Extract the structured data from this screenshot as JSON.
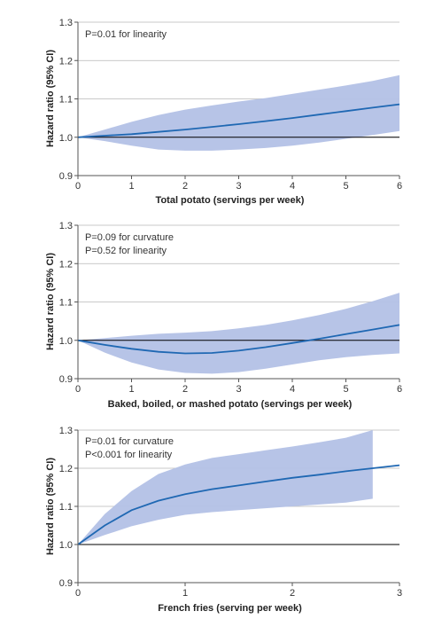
{
  "colors": {
    "band": "#b3c1e6",
    "line": "#1f68b3",
    "ref": "#000000",
    "grid": "#b8b8b8",
    "axis": "#555555",
    "text": "#333333"
  },
  "chart_data": [
    {
      "type": "line",
      "title": "",
      "xlabel": "Total potato (servings per week)",
      "ylabel": "Hazard ratio (95% CI)",
      "xlim": [
        0,
        6
      ],
      "ylim": [
        0.9,
        1.3
      ],
      "xticks": [
        0,
        1,
        2,
        3,
        4,
        5,
        6
      ],
      "yticks": [
        0.9,
        1.0,
        1.1,
        1.2,
        1.3
      ],
      "xtick_labels": [
        "0",
        "1",
        "2",
        "3",
        "4",
        "5",
        "6"
      ],
      "ytick_labels": [
        "0.9",
        "1.0",
        "1.1",
        "1.2",
        "1.3"
      ],
      "reference_line": 1.0,
      "grid": "horizontal",
      "annotations": [
        "P=0.01 for linearity"
      ],
      "series": [
        {
          "x": [
            0,
            0.5,
            1,
            1.5,
            2,
            2.5,
            3,
            3.5,
            4,
            4.5,
            5,
            5.5,
            6
          ],
          "y": [
            1.0,
            1.004,
            1.008,
            1.014,
            1.02,
            1.027,
            1.034,
            1.042,
            1.05,
            1.059,
            1.068,
            1.077,
            1.086
          ],
          "lower": [
            1.0,
            0.99,
            0.978,
            0.968,
            0.965,
            0.965,
            0.968,
            0.972,
            0.978,
            0.986,
            0.996,
            1.006,
            1.016
          ],
          "upper": [
            1.0,
            1.02,
            1.04,
            1.058,
            1.072,
            1.083,
            1.093,
            1.102,
            1.113,
            1.124,
            1.135,
            1.147,
            1.162
          ]
        }
      ]
    },
    {
      "type": "line",
      "title": "",
      "xlabel": "Baked, boiled, or mashed potato (servings per week)",
      "ylabel": "Hazard ratio (95% CI)",
      "xlim": [
        0,
        6
      ],
      "ylim": [
        0.9,
        1.3
      ],
      "xticks": [
        0,
        1,
        2,
        3,
        4,
        5,
        6
      ],
      "yticks": [
        0.9,
        1.0,
        1.1,
        1.2,
        1.3
      ],
      "xtick_labels": [
        "0",
        "1",
        "2",
        "3",
        "4",
        "5",
        "6"
      ],
      "ytick_labels": [
        "0.9",
        "1.0",
        "1.1",
        "1.2",
        "1.3"
      ],
      "reference_line": 1.0,
      "grid": "horizontal",
      "annotations": [
        "P=0.09 for curvature",
        "P=0.52 for linearity"
      ],
      "series": [
        {
          "x": [
            0,
            0.5,
            1,
            1.5,
            2,
            2.5,
            3,
            3.5,
            4,
            4.5,
            5,
            5.5,
            6
          ],
          "y": [
            1.0,
            0.988,
            0.978,
            0.97,
            0.966,
            0.967,
            0.973,
            0.982,
            0.993,
            1.004,
            1.016,
            1.028,
            1.04
          ],
          "lower": [
            1.0,
            0.968,
            0.942,
            0.924,
            0.915,
            0.913,
            0.917,
            0.926,
            0.937,
            0.948,
            0.956,
            0.962,
            0.966
          ],
          "upper": [
            1.0,
            1.006,
            1.012,
            1.017,
            1.02,
            1.024,
            1.031,
            1.04,
            1.052,
            1.066,
            1.082,
            1.102,
            1.124
          ]
        }
      ]
    },
    {
      "type": "line",
      "title": "",
      "xlabel": "French fries (serving per week)",
      "ylabel": "Hazard ratio (95% CI)",
      "xlim": [
        0,
        3
      ],
      "ylim": [
        0.9,
        1.3
      ],
      "xticks": [
        0,
        1,
        2,
        3
      ],
      "yticks": [
        0.9,
        1.0,
        1.1,
        1.2,
        1.3
      ],
      "xtick_labels": [
        "0",
        "1",
        "2",
        "3"
      ],
      "ytick_labels": [
        "0.9",
        "1.0",
        "1.1",
        "1.2",
        "1.3"
      ],
      "reference_line": 1.0,
      "grid": "horizontal",
      "annotations": [
        "P=0.01 for curvature",
        "P<0.001 for linearity"
      ],
      "series": [
        {
          "x": [
            0,
            0.25,
            0.5,
            0.75,
            1,
            1.25,
            1.5,
            1.75,
            2,
            2.25,
            2.5,
            2.75,
            3
          ],
          "y": [
            1.0,
            1.05,
            1.09,
            1.115,
            1.132,
            1.145,
            1.155,
            1.165,
            1.175,
            1.183,
            1.192,
            1.2,
            1.208
          ],
          "lower": [
            1.0,
            1.025,
            1.048,
            1.065,
            1.078,
            1.085,
            1.09,
            1.095,
            1.1,
            1.105,
            1.11,
            1.12,
            null
          ],
          "upper": [
            1.0,
            1.08,
            1.14,
            1.185,
            1.21,
            1.227,
            1.237,
            1.247,
            1.257,
            1.268,
            1.28,
            1.3,
            null
          ]
        }
      ]
    }
  ]
}
